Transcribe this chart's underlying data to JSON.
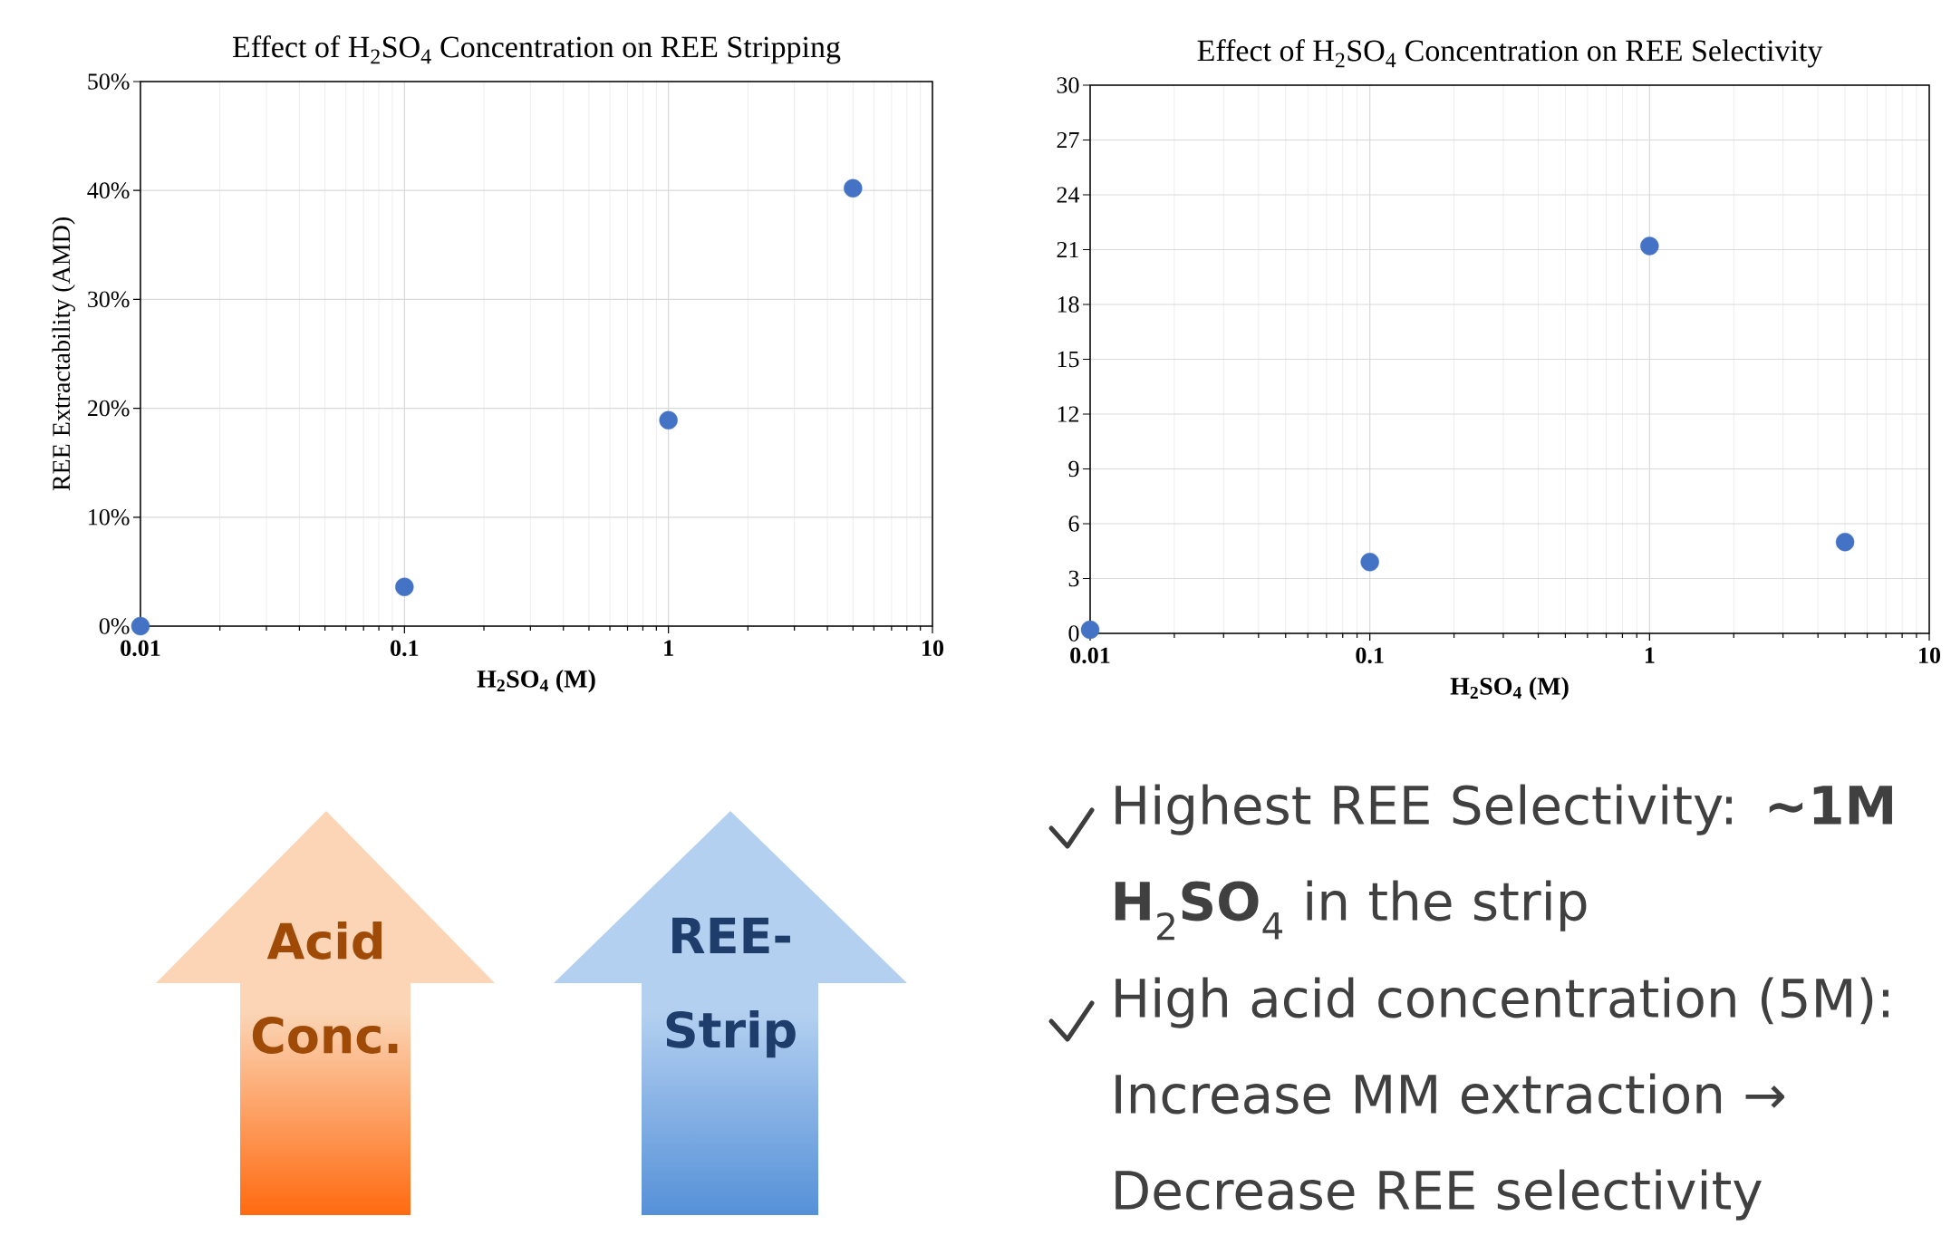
{
  "chart_data": [
    {
      "type": "scatter",
      "title": "Effect of H$_{2}$SO$_{4}$ Concentration on REE Stripping",
      "xlabel": "H$_{2}$SO$_{4}$ (M)",
      "ylabel": "REE Extractability (AMD)",
      "log": "x",
      "grid": true,
      "color": "#4472c4",
      "x": [
        0.01,
        0.1,
        1,
        5
      ],
      "values": [
        0,
        3.6,
        18.9,
        40.2
      ],
      "xlim": [
        0.01,
        10
      ],
      "xticks": [
        0.01,
        0.1,
        1,
        10
      ],
      "ylim": [
        0,
        50
      ],
      "yticks": [
        {
          "value": 0,
          "label": "0%"
        },
        {
          "value": 10,
          "label": "10%"
        },
        {
          "value": 20,
          "label": "20%"
        },
        {
          "value": 30,
          "label": "30%"
        },
        {
          "value": 40,
          "label": "40%"
        },
        {
          "value": 50,
          "label": "50%"
        }
      ]
    },
    {
      "type": "scatter",
      "title": "Effect of H$_{2}$SO$_{4}$ Concentration on REE Selectivity",
      "xlabel": "H$_{2}$SO$_{4}$ (M)",
      "log": "x",
      "grid": true,
      "color": "#4472c4",
      "x": [
        0.01,
        0.1,
        1,
        5
      ],
      "values": [
        0.2,
        3.9,
        21.2,
        5.0
      ],
      "xlim": [
        0.01,
        10
      ],
      "xticks": [
        0.01,
        0.1,
        1,
        10
      ],
      "ylim": [
        0,
        30
      ],
      "yticks": [
        0,
        3,
        6,
        9,
        12,
        15,
        18,
        21,
        24,
        27,
        30
      ]
    },
    {
      "type": "other",
      "annotations": [
        "Acid Conc.",
        "REE-Strip",
        "Highest REE Selectivity:  **~1M H**$_{2}$**SO**$_{4}$ in the strip",
        "High acid concentration (5M): Increase MM extraction → Decrease REE selectivity"
      ]
    }
  ]
}
